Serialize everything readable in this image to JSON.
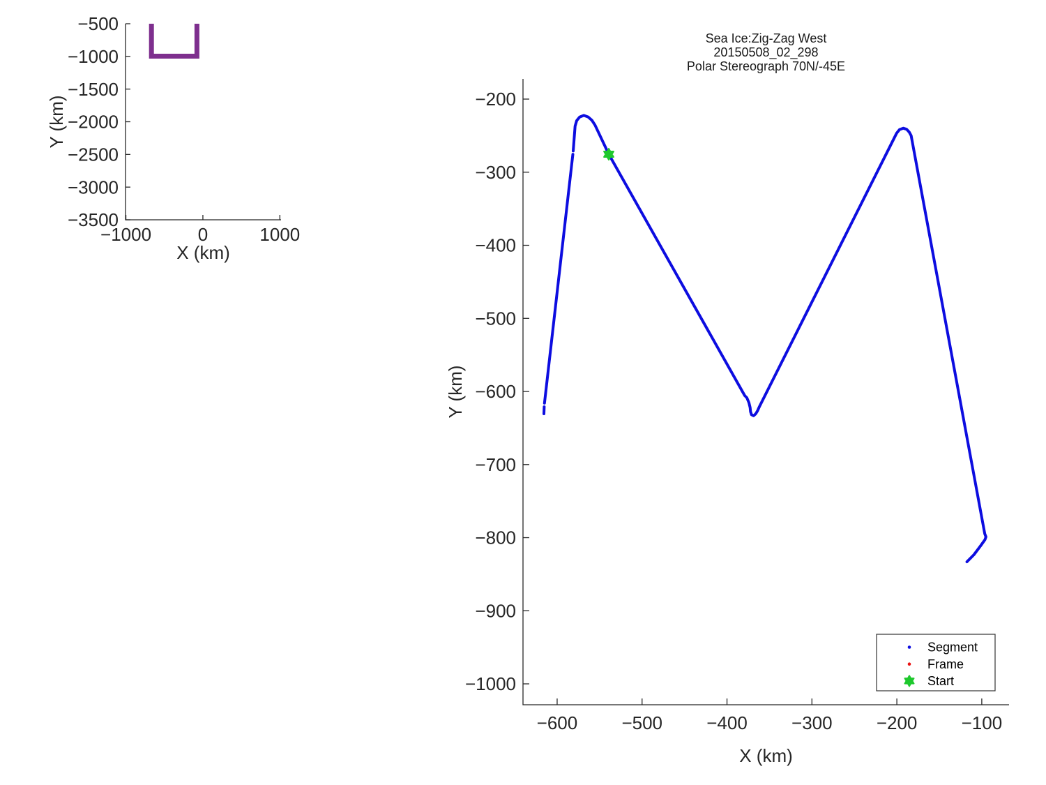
{
  "figure": {
    "background": "#ffffff",
    "axis_color": "#262626",
    "text_color": "#262626"
  },
  "chart_data": [
    {
      "id": "overview",
      "type": "line",
      "title_lines": [],
      "xlabel": "X (km)",
      "ylabel": "Y (km)",
      "xlim": [
        -1005,
        1015
      ],
      "ylim": [
        -3500,
        -500
      ],
      "xticks": [
        -1000,
        0,
        1000
      ],
      "yticks": [
        -500,
        -1000,
        -1500,
        -2000,
        -2500,
        -3000,
        -3500
      ],
      "grid": false,
      "series": [
        {
          "name": "flight-track-overview",
          "color": "#7E2F8E",
          "line_width": 7,
          "points": [
            [
              -668,
              -500
            ],
            [
              -668,
              -996
            ],
            [
              -77,
              -996
            ],
            [
              -77,
              -500
            ]
          ]
        }
      ],
      "markers": [],
      "legend": null
    },
    {
      "id": "main",
      "type": "line",
      "title_lines": [
        "Sea Ice:Zig-Zag West",
        "20150508_02_298",
        "Polar Stereograph 70N/-45E"
      ],
      "xlabel": "X (km)",
      "ylabel": "Y (km)",
      "xlim": [
        -640.2,
        -67.9
      ],
      "ylim": [
        -1028.6,
        -172.3
      ],
      "xticks": [
        -600,
        -500,
        -400,
        -300,
        -200,
        -100
      ],
      "yticks": [
        -200,
        -300,
        -400,
        -500,
        -600,
        -700,
        -800,
        -900,
        -1000
      ],
      "grid": false,
      "series": [
        {
          "name": "Segment",
          "color": "#0d0de0",
          "line_width": 4,
          "points": [
            [
              -615.6,
              -630.5
            ],
            [
              -615.2,
              -621.0
            ],
            null,
            [
              -614.9,
              -616.0
            ],
            [
              -581.5,
              -275.5
            ],
            null,
            [
              -581.1,
              -271.0
            ],
            [
              -578.9,
              -237.0
            ],
            [
              -577.0,
              -229.5
            ],
            [
              -573.5,
              -224.5
            ],
            [
              -568.6,
              -222.3
            ],
            [
              -563.5,
              -224.4
            ],
            [
              -559.1,
              -229.0
            ],
            [
              -555.4,
              -235.6
            ],
            [
              -539.2,
              -275.4
            ],
            [
              -379.1,
              -605.7
            ],
            [
              -376.6,
              -608.6
            ],
            [
              -374.2,
              -615.3
            ],
            [
              -372.8,
              -622.0
            ],
            [
              -372.3,
              -627.7
            ],
            [
              -371.1,
              -631.8
            ],
            [
              -368.7,
              -633.2
            ],
            [
              -366.2,
              -630.6
            ],
            [
              -364.1,
              -626.5
            ],
            [
              -361.9,
              -621.0
            ],
            [
              -200.2,
              -246.5
            ],
            [
              -196.9,
              -241.7
            ],
            [
              -192.5,
              -239.8
            ],
            [
              -188.4,
              -241.3
            ],
            [
              -185.4,
              -245.2
            ],
            [
              -183.2,
              -249.9
            ],
            [
              -96.5,
              -794.7
            ],
            [
              -95.1,
              -798.9
            ],
            [
              -96.2,
              -802.7
            ],
            [
              -101.1,
              -810.7
            ],
            [
              -109.3,
              -823.4
            ],
            [
              -117.5,
              -833.0
            ]
          ]
        }
      ],
      "markers": [
        {
          "name": "Start",
          "shape": "hexagram",
          "color": "#1ec82d",
          "x": -539.2,
          "y": -275.4,
          "size": 8
        }
      ],
      "legend": {
        "position": "bottom-right",
        "entries": [
          {
            "label": "Segment",
            "marker": "dot",
            "color": "#0d0de0"
          },
          {
            "label": "Frame",
            "marker": "dot",
            "color": "#ea1212"
          },
          {
            "label": "Start",
            "marker": "hexagram",
            "color": "#1ec82d"
          }
        ]
      }
    }
  ]
}
